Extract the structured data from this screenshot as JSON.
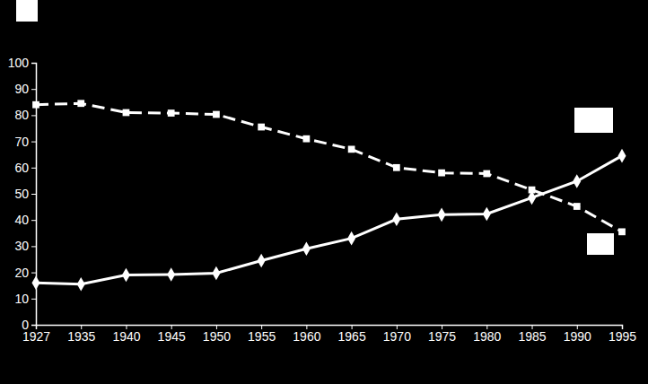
{
  "chart_data": {
    "type": "line",
    "categories": [
      "1927",
      "1935",
      "1940",
      "1945",
      "1950",
      "1955",
      "1960",
      "1965",
      "1970",
      "1975",
      "1980",
      "1985",
      "1990",
      "1995"
    ],
    "series": [
      {
        "color": "#ffffff",
        "marker": "square",
        "line_style": "dashed",
        "values": [
          84,
          84.5,
          81,
          80.8,
          80.3,
          75.5,
          71,
          67,
          60,
          58,
          57.7,
          51.5,
          45.2,
          35.5
        ]
      },
      {
        "color": "#ffffff",
        "marker": "diamond",
        "line_style": "solid",
        "values": [
          16,
          15.5,
          19,
          19.2,
          19.7,
          24.5,
          29,
          33,
          40.3,
          42,
          42.3,
          48.5,
          54.8,
          64.5
        ]
      }
    ],
    "ylim": [
      0,
      100
    ],
    "yticks": [
      0,
      10,
      20,
      30,
      40,
      50,
      60,
      70,
      80,
      90,
      100
    ],
    "grid": false
  }
}
